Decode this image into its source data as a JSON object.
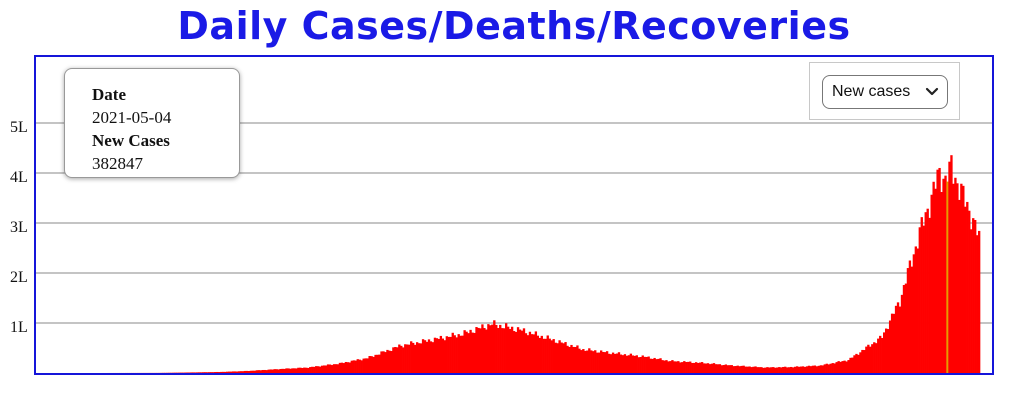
{
  "chart_data": {
    "type": "bar",
    "title": "Daily Cases/Deaths/Recoveries",
    "xlabel": "",
    "ylabel": "",
    "ylim": [
      0,
      500000
    ],
    "yticks": [
      {
        "value": 100000,
        "label": "1L"
      },
      {
        "value": 200000,
        "label": "2L"
      },
      {
        "value": 300000,
        "label": "3L"
      },
      {
        "value": 400000,
        "label": "4L"
      },
      {
        "value": 500000,
        "label": "5L"
      }
    ],
    "grid": true,
    "bar_color": "#ff0000",
    "highlight_color": "#e69a00",
    "x_start": "2020-01-30",
    "x_end": "2021-05-20",
    "daily_trend": [
      [
        "2020-01-30",
        0
      ],
      [
        "2020-03-01",
        0
      ],
      [
        "2020-03-31",
        200
      ],
      [
        "2020-04-15",
        1000
      ],
      [
        "2020-05-01",
        2000
      ],
      [
        "2020-05-15",
        4000
      ],
      [
        "2020-06-01",
        8000
      ],
      [
        "2020-06-15",
        11000
      ],
      [
        "2020-07-01",
        19000
      ],
      [
        "2020-07-15",
        30000
      ],
      [
        "2020-08-01",
        55000
      ],
      [
        "2020-08-15",
        65000
      ],
      [
        "2020-09-01",
        78000
      ],
      [
        "2020-09-16",
        97894
      ],
      [
        "2020-10-01",
        85000
      ],
      [
        "2020-10-15",
        68000
      ],
      [
        "2020-11-01",
        47000
      ],
      [
        "2020-11-15",
        40000
      ],
      [
        "2020-12-01",
        33000
      ],
      [
        "2020-12-15",
        24000
      ],
      [
        "2021-01-01",
        20000
      ],
      [
        "2021-01-15",
        15000
      ],
      [
        "2021-02-01",
        11000
      ],
      [
        "2021-02-15",
        12000
      ],
      [
        "2021-03-01",
        15000
      ],
      [
        "2021-03-15",
        26000
      ],
      [
        "2021-04-01",
        72000
      ],
      [
        "2021-04-10",
        145000
      ],
      [
        "2021-04-20",
        280000
      ],
      [
        "2021-04-30",
        400000
      ],
      [
        "2021-05-04",
        382847
      ],
      [
        "2021-05-06",
        414000
      ],
      [
        "2021-05-10",
        370000
      ],
      [
        "2021-05-15",
        326000
      ],
      [
        "2021-05-20",
        270000
      ]
    ],
    "highlight": {
      "date": "2021-05-04",
      "value": 382847
    }
  },
  "tooltip": {
    "date_label": "Date",
    "date_value": "2021-05-04",
    "metric_label": "New Cases",
    "metric_value": "382847"
  },
  "selector": {
    "selected": "New cases",
    "icon": "chevron-down-icon"
  }
}
